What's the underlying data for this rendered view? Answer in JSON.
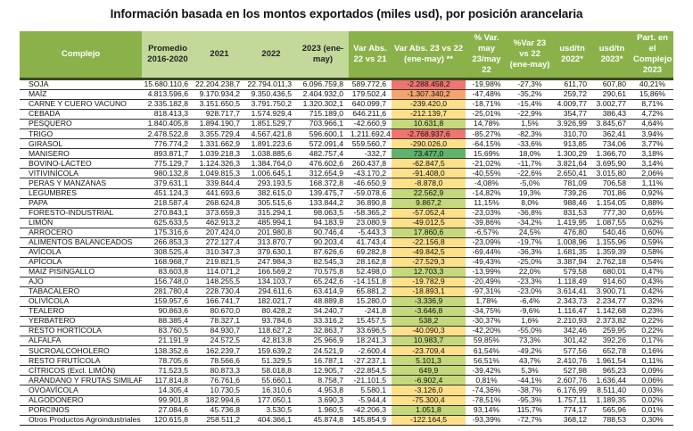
{
  "title": "Información basada en los montos exportados (miles usd), por posición arancelaria",
  "headers": {
    "complejo": "Complejo",
    "promedio": "Promedio 2016-2020",
    "y2021": "2021",
    "y2022": "2022",
    "y2023": "2023 (ene-may)",
    "var_abs_22_21": "Var Abs. 22 vs 21",
    "var_abs_23_22": "Var Abs. 23 vs 22 (ene-may) **",
    "pct_var_may": "% Var. may 23/may 22",
    "pct_var_23_22": "%Var 23 vs 22 (ene-may)",
    "usd_tn_2022": "usd/tn 2022*",
    "usd_tn_2023": "usd/tn 2023*",
    "part_complejo": "Part. en el Complejo 2023"
  },
  "colors": {
    "header_dark": "#8bb24a",
    "header_light": "#c3d99a",
    "heat_red": "#f07470",
    "heat_orange": "#f4a56e",
    "heat_yellow": "#fde08a",
    "heat_lightgreen": "#c5d97c",
    "heat_green": "#5fb36a"
  },
  "rows": [
    {
      "name": "SOJA",
      "prom": "15.680.110,6",
      "y2021": "22.204.238,7",
      "y2022": "22.794.011,3",
      "y2023": "6.096.759,8",
      "var2221": "589.772,6",
      "var2322": "-2.288.458,2",
      "heat": "red",
      "pmay": "-19,98%",
      "p2322": "-27,3%",
      "t2022": "611,70",
      "t2023": "607,80",
      "part": "40,21%"
    },
    {
      "name": "MAÍZ",
      "prom": "4.813.596,6",
      "y2021": "9.170.934,2",
      "y2022": "9.350.436,5",
      "y2023": "2.404.932,0",
      "var2221": "179.502,4",
      "var2322": "-1.307.340,2",
      "heat": "orange",
      "pmay": "-47,48%",
      "p2322": "-35,2%",
      "t2022": "259,72",
      "t2023": "290,61",
      "part": "15,86%"
    },
    {
      "name": "CARNE Y CUERO VACUNO",
      "prom": "2.335.182,8",
      "y2021": "3.151.650,5",
      "y2022": "3.791.750,2",
      "y2023": "1.320.302,1",
      "var2221": "640.099,7",
      "var2322": "-239.420,0",
      "heat": "yellow",
      "pmay": "-18,71%",
      "p2322": "-15,4%",
      "t2022": "4.009,77",
      "t2023": "3.002,77",
      "part": "8,71%"
    },
    {
      "name": "CEBADA",
      "prom": "818.413,3",
      "y2021": "928.717,7",
      "y2022": "1.574.929,4",
      "y2023": "715.189,0",
      "var2221": "646.211,6",
      "var2322": "-212.139,7",
      "heat": "yellow",
      "pmay": "-25,01%",
      "p2322": "-22,9%",
      "t2022": "354,77",
      "t2023": "386,43",
      "part": "4,72%"
    },
    {
      "name": "PESQUERO",
      "prom": "1.840.405,8",
      "y2021": "1.894.190,7",
      "y2022": "1.851.529,7",
      "y2023": "703.966,1",
      "var2221": "-42.660,9",
      "var2322": "10.631,8",
      "heat": "lightgreen",
      "pmay": "14,78%",
      "p2322": "1,5%",
      "t2022": "3.926,99",
      "t2023": "3.845,67",
      "part": "4,64%"
    },
    {
      "name": "TRIGO",
      "prom": "2.478.522,8",
      "y2021": "3.355.729,4",
      "y2022": "4.567.421,8",
      "y2023": "596.600,1",
      "var2221": "1.211.692,4",
      "var2322": "-2.768.937,6",
      "heat": "red",
      "pmay": "-85,27%",
      "p2322": "-82,3%",
      "t2022": "310,70",
      "t2023": "362,41",
      "part": "3,94%"
    },
    {
      "name": "GIRASOL",
      "prom": "776.774,2",
      "y2021": "1.331.662,9",
      "y2022": "1.891.223,6",
      "y2023": "572.091,4",
      "var2221": "559.560,7",
      "var2322": "-290.026,0",
      "heat": "yellow",
      "pmay": "-64,15%",
      "p2322": "-33,6%",
      "t2022": "913,85",
      "t2023": "734,06",
      "part": "3,77%"
    },
    {
      "name": "MANISERO",
      "prom": "893.871,7",
      "y2021": "1.039.218,3",
      "y2022": "1.038.885,6",
      "y2023": "482.757,4",
      "var2221": "-332,7",
      "var2322": "73.477,0",
      "heat": "green",
      "pmay": "15,69%",
      "p2322": "18,0%",
      "t2022": "1.300,29",
      "t2023": "1.366,70",
      "part": "3,18%"
    },
    {
      "name": "BOVINO-LÁCTEO",
      "prom": "775.129,7",
      "y2021": "1.124.326,3",
      "y2022": "1.384.764,0",
      "y2023": "476.602,6",
      "var2221": "260.437,8",
      "var2322": "-62.847,5",
      "heat": "yellow",
      "pmay": "-21,02%",
      "p2322": "-11,7%",
      "t2022": "3.821,64",
      "t2023": "3.695,90",
      "part": "3,14%"
    },
    {
      "name": "VITIVINÍCOLA",
      "prom": "980.132,8",
      "y2021": "1.049.815,3",
      "y2022": "1.006.645,1",
      "y2023": "312.654,9",
      "var2221": "-43.170,2",
      "var2322": "-91.408,0",
      "heat": "yellow",
      "pmay": "-40,55%",
      "p2322": "-22,6%",
      "t2022": "2.650,41",
      "t2023": "3.015,80",
      "part": "2,06%"
    },
    {
      "name": "PERAS Y MANZANAS",
      "prom": "379.631,1",
      "y2021": "339.844,4",
      "y2022": "293.193,5",
      "y2023": "168.372,8",
      "var2221": "-46.650,9",
      "var2322": "-8.878,0",
      "heat": "yellow",
      "pmay": "-4,08%",
      "p2322": "-5,0%",
      "t2022": "781,09",
      "t2023": "706,58",
      "part": "1,11%"
    },
    {
      "name": "LEGUMBRES",
      "prom": "451.124,3",
      "y2021": "441.693,6",
      "y2022": "382.615,0",
      "y2023": "139.475,7",
      "var2221": "-59.078,6",
      "var2322": "22.562,9",
      "heat": "lightgreen",
      "pmay": "-14,82%",
      "p2322": "19,3%",
      "t2022": "739,26",
      "t2023": "701,86",
      "part": "0,92%"
    },
    {
      "name": "PAPA",
      "prom": "218.587,4",
      "y2021": "268.624,8",
      "y2022": "305.515,6",
      "y2023": "133.844,2",
      "var2221": "36.890,8",
      "var2322": "9.867,2",
      "heat": "lightgreen",
      "pmay": "11,15%",
      "p2322": "8,0%",
      "t2022": "988,46",
      "t2023": "1.154,05",
      "part": "0,88%"
    },
    {
      "name": "FORESTO-INDUSTRIAL",
      "prom": "270.843,1",
      "y2021": "373.659,3",
      "y2022": "315.294,1",
      "y2023": "98.063,5",
      "var2221": "-58.365,2",
      "var2322": "-57.052,4",
      "heat": "yellow",
      "pmay": "-23,03%",
      "p2322": "-36,8%",
      "t2022": "831,53",
      "t2023": "777,30",
      "part": "0,65%"
    },
    {
      "name": "LIMÓN",
      "prom": "625.633,5",
      "y2021": "462.913,2",
      "y2022": "485.994,1",
      "y2023": "94.183,9",
      "var2221": "23.080,9",
      "var2322": "-49.012,5",
      "heat": "yellow",
      "pmay": "-39,86%",
      "p2322": "-34,2%",
      "t2022": "1.419,95",
      "t2023": "1.087,55",
      "part": "0,62%"
    },
    {
      "name": "ARROCERO",
      "prom": "175.316,6",
      "y2021": "207.424,0",
      "y2022": "201.980,8",
      "y2023": "90.746,4",
      "var2221": "-5.443,3",
      "var2322": "17.860,6",
      "heat": "lightgreen",
      "pmay": "-6,57%",
      "p2322": "24,5%",
      "t2022": "476,80",
      "t2023": "540,46",
      "part": "0,60%"
    },
    {
      "name": "ALIMENTOS BALANCEADOS",
      "prom": "266.853,3",
      "y2021": "272.127,4",
      "y2022": "313.870,7",
      "y2023": "90.203,4",
      "var2221": "41.743,4",
      "var2322": "-22.156,8",
      "heat": "yellow",
      "pmay": "-23,09%",
      "p2322": "-19,7%",
      "t2022": "1.008,96",
      "t2023": "1.155,96",
      "part": "0,59%"
    },
    {
      "name": "AVÍCOLA",
      "prom": "308.525,4",
      "y2021": "310.347,3",
      "y2022": "379.630,1",
      "y2023": "87.626,6",
      "var2221": "69.282,8",
      "var2322": "-49.842,5",
      "heat": "yellow",
      "pmay": "-69,44%",
      "p2322": "-36,3%",
      "t2022": "1.681,35",
      "t2023": "1.359,39",
      "part": "0,58%"
    },
    {
      "name": "APÍCOLA",
      "prom": "168.968,7",
      "y2021": "219.821,5",
      "y2022": "247.984,3",
      "y2023": "82.545,3",
      "var2221": "28.162,8",
      "var2322": "-27.529,3",
      "heat": "yellow",
      "pmay": "-49,43%",
      "p2322": "-25,0%",
      "t2022": "3.387,94",
      "t2023": "2.762,18",
      "part": "0,54%"
    },
    {
      "name": "MAIZ PISINGALLO",
      "prom": "83.603,8",
      "y2021": "114.071,2",
      "y2022": "166.569,2",
      "y2023": "70.575,8",
      "var2221": "52.498,0",
      "var2322": "12.703,3",
      "heat": "lightgreen",
      "pmay": "-13,99%",
      "p2322": "22,0%",
      "t2022": "579,58",
      "t2023": "680,01",
      "part": "0,47%"
    },
    {
      "name": "AJO",
      "prom": "156.748,0",
      "y2021": "148.255,5",
      "y2022": "134.103,7",
      "y2023": "65.242,6",
      "var2221": "-14.151,8",
      "var2322": "-19.782,9",
      "heat": "yellow",
      "pmay": "-20,49%",
      "p2322": "-23,3%",
      "t2022": "1.118,49",
      "t2023": "914,60",
      "part": "0,43%"
    },
    {
      "name": "TABACALERO",
      "prom": "281.780,4",
      "y2021": "228.730,4",
      "y2022": "294.611,6",
      "y2023": "63.414,9",
      "var2221": "65.881,2",
      "var2322": "-18.893,1",
      "heat": "yellow",
      "pmay": "-97,31%",
      "p2322": "-23,0%",
      "t2022": "3.614,41",
      "t2023": "3.900,71",
      "part": "0,42%"
    },
    {
      "name": "OLIVÍCOLA",
      "prom": "159.957,6",
      "y2021": "166.741,7",
      "y2022": "182.021,7",
      "y2023": "48.889,8",
      "var2221": "15.280,0",
      "var2322": "-3.336,9",
      "heat": "lightgreen",
      "pmay": "1,78%",
      "p2322": "-6,4%",
      "t2022": "2.343,73",
      "t2023": "2.234,77",
      "part": "0,32%"
    },
    {
      "name": "TEALERO",
      "prom": "90.863,6",
      "y2021": "80.670,0",
      "y2022": "80.428,2",
      "y2023": "34.240,7",
      "var2221": "-241,8",
      "var2322": "-3.646,8",
      "heat": "lightgreen",
      "pmay": "-34,75%",
      "p2322": "-9,6%",
      "t2022": "1.116,47",
      "t2023": "1.142,68",
      "part": "0,23%"
    },
    {
      "name": "YERBATERO",
      "prom": "88.385,4",
      "y2021": "78.327,1",
      "y2022": "93.784,6",
      "y2023": "33.316,2",
      "var2221": "15.457,5",
      "var2322": "538,2",
      "heat": "lightgreen",
      "pmay": "-30,37%",
      "p2322": "1,6%",
      "t2022": "2.210,93",
      "t2023": "2.373,82",
      "part": "0,22%"
    },
    {
      "name": "RESTO HORTÍCOLA",
      "prom": "83.760,5",
      "y2021": "84.930,7",
      "y2022": "118.627,2",
      "y2023": "32.863,7",
      "var2221": "33.696,5",
      "var2322": "-40.090,3",
      "heat": "yellow",
      "pmay": "-42,20%",
      "p2322": "-55,0%",
      "t2022": "342,46",
      "t2023": "259,95",
      "part": "0,22%"
    },
    {
      "name": "ALFALFA",
      "prom": "21.191,9",
      "y2021": "24.572,5",
      "y2022": "42.813,8",
      "y2023": "25.966,9",
      "var2221": "18.241,3",
      "var2322": "10.983,7",
      "heat": "lightgreen",
      "pmay": "59,85%",
      "p2322": "73,3%",
      "t2022": "301,42",
      "t2023": "392,26",
      "part": "0,17%"
    },
    {
      "name": "SUCROALCOHOLERO",
      "prom": "138.352,6",
      "y2021": "162.239,7",
      "y2022": "159.639,2",
      "y2023": "24.521,9",
      "var2221": "-2.600,4",
      "var2322": "-23.709,4",
      "heat": "yellow",
      "pmay": "61,54%",
      "p2322": "-49,2%",
      "t2022": "577,56",
      "t2023": "652,78",
      "part": "0,16%"
    },
    {
      "name": "RESTO FRUTÍCOLA",
      "prom": "78.705,6",
      "y2021": "78.566,6",
      "y2022": "51.329,5",
      "y2023": "16.787,1",
      "var2221": "-27.237,1",
      "var2322": "5.101,3",
      "heat": "lightgreen",
      "pmay": "56,51%",
      "p2322": "43,7%",
      "t2022": "2.410,76",
      "t2023": "1.961,54",
      "part": "0,11%"
    },
    {
      "name": "CÍTRICOS (Excl. LIMÓN)",
      "prom": "71.523,5",
      "y2021": "80.873,3",
      "y2022": "58.018,8",
      "y2023": "12.905,7",
      "var2221": "-22.854,5",
      "var2322": "649,9",
      "heat": "lightgreen",
      "pmay": "-39,42%",
      "p2322": "5,3%",
      "t2022": "527,98",
      "t2023": "965,23",
      "part": "0,09%"
    },
    {
      "name": "ARÁNDANO Y FRUTAS SIMILARES",
      "prom": "117.814,8",
      "y2021": "76.761,6",
      "y2022": "55.660,1",
      "y2023": "8.758,7",
      "var2221": "-21.101,5",
      "var2322": "-6.902,4",
      "heat": "lightgreen",
      "pmay": "0,81%",
      "p2322": "-44,1%",
      "t2022": "2.607,76",
      "t2023": "1.636,44",
      "part": "0,06%"
    },
    {
      "name": "OVOAVÍCOLA",
      "prom": "14.305,4",
      "y2021": "10.730,5",
      "y2022": "16.310,6",
      "y2023": "4.953,8",
      "var2221": "5.580,1",
      "var2322": "-3.126,0",
      "heat": "yellow",
      "pmay": "-74,36%",
      "p2322": "-38,7%",
      "t2022": "6.176,99",
      "t2023": "8.511,40",
      "part": "0,03%"
    },
    {
      "name": "ALGODONERO",
      "prom": "99.901,8",
      "y2021": "182.994,6",
      "y2022": "177.050,1",
      "y2023": "3.690,3",
      "var2221": "-5.944,4",
      "var2322": "-75.300,4",
      "heat": "yellow",
      "pmay": "-78,51%",
      "p2322": "-95,3%",
      "t2022": "1.757,11",
      "t2023": "1.189,35",
      "part": "0,02%"
    },
    {
      "name": "PORCINOS",
      "prom": "27.084,6",
      "y2021": "45.736,8",
      "y2022": "3.530,5",
      "y2023": "1.960,5",
      "var2221": "-42.206,3",
      "var2322": "1.051,8",
      "heat": "lightgreen",
      "pmay": "93,14%",
      "p2322": "115,7%",
      "t2022": "774,17",
      "t2023": "565,96",
      "part": "0,01%"
    },
    {
      "name": "Otros Productos Agroindustriales",
      "prom": "120.615,8",
      "y2021": "258.511,2",
      "y2022": "404.366,1",
      "y2023": "45.874,8",
      "var2221": "145.854,9",
      "var2322": "-122.164,5",
      "heat": "yellow",
      "pmay": "-93,39%",
      "p2322": "-72,7%",
      "t2022": "368,12",
      "t2023": "788,53",
      "part": "0,30%"
    }
  ]
}
